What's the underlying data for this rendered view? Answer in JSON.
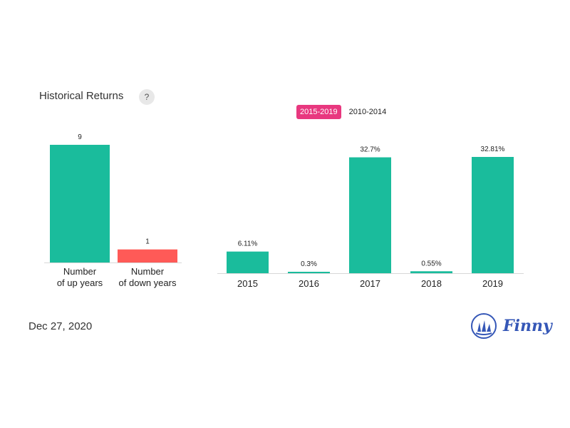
{
  "header": {
    "title": "Historical Returns",
    "help": "?"
  },
  "tabs": [
    {
      "label": "2015-2019",
      "active": true
    },
    {
      "label": "2010-2014",
      "active": false
    }
  ],
  "footer": {
    "date": "Dec 27, 2020",
    "logo_text": "Finny"
  },
  "colors": {
    "up": "#1abc9c",
    "down": "#ff5a57",
    "tab_active": "#e8387f",
    "logo": "#3557b7"
  },
  "chart_data": [
    {
      "type": "bar",
      "categories": [
        [
          "Number",
          "of up years"
        ],
        [
          "Number",
          "of down years"
        ]
      ],
      "values": [
        9,
        1
      ],
      "value_labels": [
        "9",
        "1"
      ],
      "colors": [
        "#1abc9c",
        "#ff5a57"
      ],
      "ylim": [
        0,
        9
      ]
    },
    {
      "type": "bar",
      "categories": [
        "2015",
        "2016",
        "2017",
        "2018",
        "2019"
      ],
      "values": [
        6.11,
        0.3,
        32.7,
        0.55,
        32.81
      ],
      "value_labels": [
        "6.11%",
        "0.3%",
        "32.7%",
        "0.55%",
        "32.81%"
      ],
      "colors": [
        "#1abc9c",
        "#1abc9c",
        "#1abc9c",
        "#1abc9c",
        "#1abc9c"
      ],
      "ylim": [
        0,
        32.81
      ]
    }
  ]
}
